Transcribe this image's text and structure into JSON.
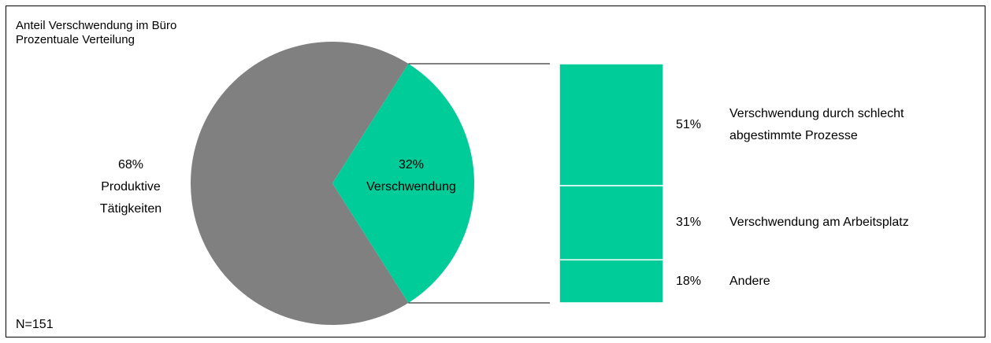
{
  "chart_data": {
    "type": "pie-of-bar",
    "title": "Anteil Verschwendung im Büro",
    "subtitle": "Prozentuale Verteilung",
    "footnote": "N=151",
    "categories": [
      "Produktive Tätigkeiten",
      "Verschwendung"
    ],
    "values": [
      68,
      32
    ],
    "value_labels": [
      "68%",
      "32%"
    ],
    "colors": [
      "#808080",
      "#00cc99"
    ],
    "breakdown": {
      "categories": [
        "Verschwendung durch schlecht abgestimmte Prozesse",
        "Verschwendung am Arbeitsplatz",
        "Andere"
      ],
      "values": [
        51,
        31,
        18
      ],
      "value_labels": [
        "51%",
        "31%",
        "18%"
      ],
      "color": "#00cc99"
    }
  }
}
